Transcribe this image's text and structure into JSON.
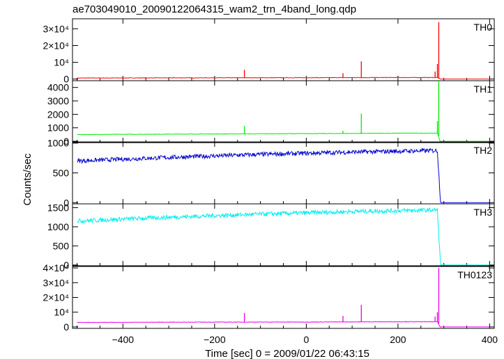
{
  "chart_data": {
    "type": "line",
    "title": "ae703049010_20090122064315_wam2_trn_4band_long.qdp",
    "xlabel": "Time [sec] 0 = 2009/01/22 06:43:15",
    "ylabel": "Counts/sec",
    "xlim": [
      -510,
      410
    ],
    "x_ticks": [
      -400,
      -200,
      0,
      200,
      400
    ],
    "x_tick_labels": [
      "−400",
      "−200",
      "0",
      "200",
      "400"
    ],
    "grid": false,
    "panels": [
      {
        "name": "TH0",
        "color": "#ff0000",
        "ylim": [
          -1000,
          36000
        ],
        "y_ticks": [
          0,
          10000,
          20000,
          30000
        ],
        "y_tick_labels": [
          "0",
          "10⁴",
          "2×10⁴",
          "3×10⁴"
        ],
        "baseline": [
          [
            -500,
            600
          ],
          [
            -300,
            700
          ],
          [
            0,
            800
          ],
          [
            200,
            900
          ],
          [
            286,
            900
          ],
          [
            292,
            0
          ],
          [
            400,
            0
          ]
        ],
        "spikes": [
          [
            -290,
            1200
          ],
          [
            -135,
            5500
          ],
          [
            35,
            1000
          ],
          [
            80,
            3500
          ],
          [
            120,
            10500
          ],
          [
            281,
            4500
          ],
          [
            286,
            9000
          ],
          [
            289,
            34000
          ]
        ]
      },
      {
        "name": "TH1",
        "color": "#00ee00",
        "ylim": [
          -100,
          4500
        ],
        "y_ticks": [
          0,
          1000,
          2000,
          3000,
          4000
        ],
        "y_tick_labels": [
          "0",
          "1000",
          "2000",
          "3000",
          "4000"
        ],
        "baseline": [
          [
            -500,
            500
          ],
          [
            -300,
            530
          ],
          [
            0,
            570
          ],
          [
            200,
            600
          ],
          [
            286,
            600
          ],
          [
            292,
            0
          ],
          [
            400,
            0
          ]
        ],
        "spikes": [
          [
            -135,
            1150
          ],
          [
            80,
            780
          ],
          [
            120,
            2050
          ],
          [
            286,
            1500
          ],
          [
            289,
            4500
          ]
        ]
      },
      {
        "name": "TH2",
        "color": "#0000cc",
        "ylim": [
          -20,
          1020
        ],
        "y_ticks": [
          0,
          500,
          1000
        ],
        "y_tick_labels": [
          "0",
          "500",
          "1000"
        ],
        "baseline": [
          [
            -500,
            700
          ],
          [
            -300,
            760
          ],
          [
            -100,
            810
          ],
          [
            100,
            850
          ],
          [
            286,
            875
          ],
          [
            290,
            380
          ],
          [
            293,
            0
          ],
          [
            400,
            0
          ]
        ],
        "spikes": []
      },
      {
        "name": "TH3",
        "color": "#00eeee",
        "ylim": [
          -20,
          1600
        ],
        "y_ticks": [
          0,
          500,
          1000,
          1500
        ],
        "y_tick_labels": [
          "0",
          "500",
          "1000",
          "1500"
        ],
        "baseline": [
          [
            -500,
            1150
          ],
          [
            -300,
            1250
          ],
          [
            -100,
            1330
          ],
          [
            100,
            1400
          ],
          [
            286,
            1440
          ],
          [
            290,
            600
          ],
          [
            293,
            0
          ],
          [
            400,
            0
          ]
        ],
        "spikes": []
      },
      {
        "name": "TH0123",
        "color": "#ee00ee",
        "ylim": [
          -1000,
          41000
        ],
        "y_ticks": [
          0,
          10000,
          20000,
          30000,
          40000
        ],
        "y_tick_labels": [
          "0",
          "10⁴",
          "2×10⁴",
          "3×10⁴",
          "4×10⁴"
        ],
        "baseline": [
          [
            -500,
            3000
          ],
          [
            -300,
            3200
          ],
          [
            0,
            3300
          ],
          [
            200,
            3500
          ],
          [
            286,
            3500
          ],
          [
            292,
            0
          ],
          [
            400,
            0
          ]
        ],
        "spikes": [
          [
            -290,
            3600
          ],
          [
            -135,
            9500
          ],
          [
            80,
            7500
          ],
          [
            120,
            15000
          ],
          [
            281,
            7000
          ],
          [
            286,
            10000
          ],
          [
            289,
            40000
          ]
        ]
      }
    ]
  }
}
